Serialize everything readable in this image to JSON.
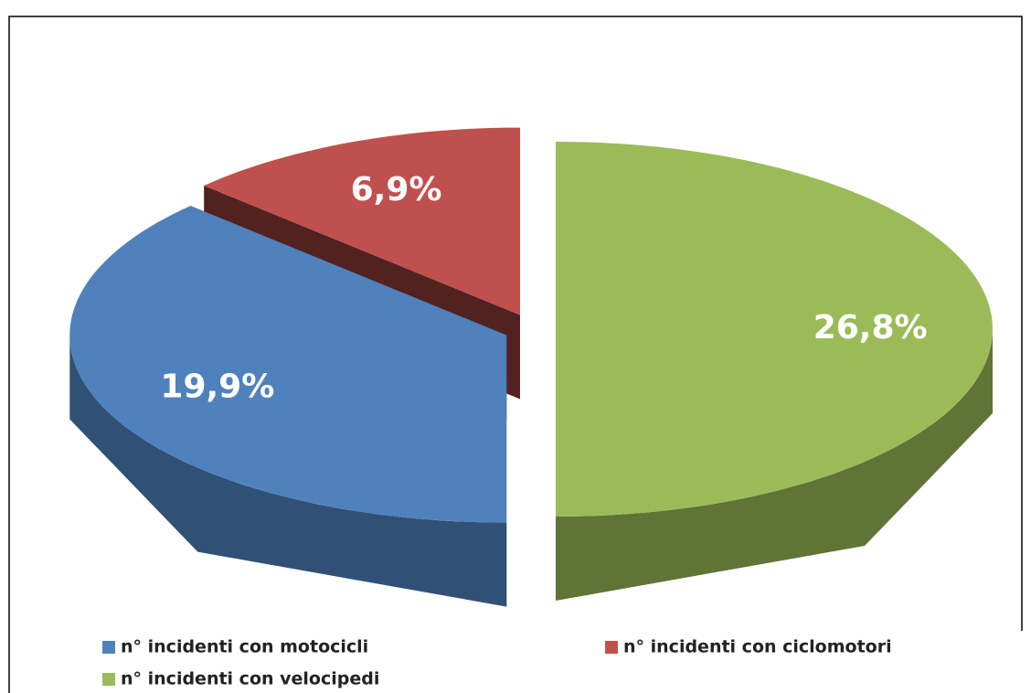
{
  "chart_data": {
    "type": "pie3d",
    "categories": [
      "n° incidenti con motocicli",
      "n° incidenti con ciclomotori",
      "n° incidenti con velocipedi"
    ],
    "values": [
      19.9,
      6.9,
      26.8
    ],
    "value_labels": [
      "19,9%",
      "6,9%",
      "26,8%"
    ],
    "colors": [
      "#4f81bd",
      "#c0504d",
      "#9bbb59"
    ],
    "legend": "bottom"
  }
}
